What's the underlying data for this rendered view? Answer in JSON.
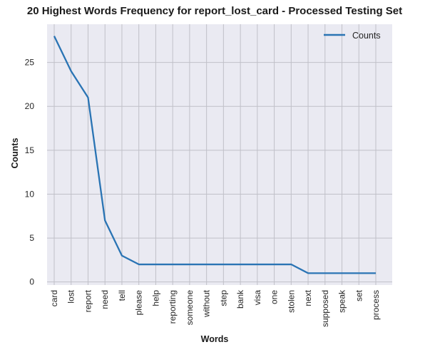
{
  "chart_data": {
    "type": "line",
    "title": "20 Highest Words Frequency for report_lost_card - Processed Testing Set",
    "xlabel": "Words",
    "ylabel": "Counts",
    "categories": [
      "card",
      "lost",
      "report",
      "need",
      "tell",
      "please",
      "help",
      "reporting",
      "someone",
      "without",
      "step",
      "bank",
      "visa",
      "one",
      "stolen",
      "next",
      "supposed",
      "speak",
      "set",
      "process"
    ],
    "series": [
      {
        "name": "Counts",
        "values": [
          28,
          24,
          21,
          7,
          3,
          2,
          2,
          2,
          2,
          2,
          2,
          2,
          2,
          2,
          2,
          1,
          1,
          1,
          1,
          1
        ]
      }
    ],
    "yticks": [
      0,
      5,
      10,
      15,
      20,
      25
    ],
    "ylim": [
      -0.35,
      29.35
    ],
    "grid": true,
    "legend_position": "top-right",
    "colors": {
      "line": "#2a74b4",
      "plot_bg": "#eaeaf2",
      "grid": "#c0c0c8"
    }
  }
}
